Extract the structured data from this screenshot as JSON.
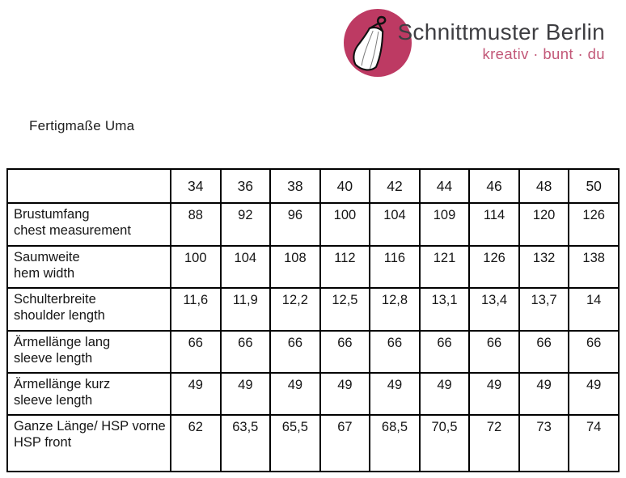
{
  "logo": {
    "brand": "Schnittmuster Berlin",
    "tagline": "kreativ · bunt · du",
    "icon": "dress-on-hanger",
    "colors": {
      "circle": "#bd3a63",
      "brand_text": "#3e3e42",
      "tagline_text": "#c25878",
      "dress_fill": "#ffffff",
      "dress_outline": "#111111"
    }
  },
  "page": {
    "title": "Fertigmaße Uma"
  },
  "table": {
    "size_headers": [
      "34",
      "36",
      "38",
      "40",
      "42",
      "44",
      "46",
      "48",
      "50"
    ],
    "rows": [
      {
        "label_de": "Brustumfang",
        "label_en": "chest measurement",
        "values": [
          "88",
          "92",
          "96",
          "100",
          "104",
          "109",
          "114",
          "120",
          "126"
        ]
      },
      {
        "label_de": "Saumweite",
        "label_en": "hem width",
        "values": [
          "100",
          "104",
          "108",
          "112",
          "116",
          "121",
          "126",
          "132",
          "138"
        ]
      },
      {
        "label_de": "Schulterbreite",
        "label_en": "shoulder length",
        "values": [
          "11,6",
          "11,9",
          "12,2",
          "12,5",
          "12,8",
          "13,1",
          "13,4",
          "13,7",
          "14"
        ]
      },
      {
        "label_de": "Ärmellänge lang",
        "label_en": "sleeve length",
        "values": [
          "66",
          "66",
          "66",
          "66",
          "66",
          "66",
          "66",
          "66",
          "66"
        ]
      },
      {
        "label_de": "Ärmellänge kurz",
        "label_en": "sleeve length",
        "values": [
          "49",
          "49",
          "49",
          "49",
          "49",
          "49",
          "49",
          "49",
          "49"
        ]
      },
      {
        "label_de": "Ganze Länge/ HSP vorne",
        "label_en": "HSP front",
        "values": [
          "62",
          "63,5",
          "65,5",
          "67",
          "68,5",
          "70,5",
          "72",
          "73",
          "74"
        ]
      }
    ]
  }
}
